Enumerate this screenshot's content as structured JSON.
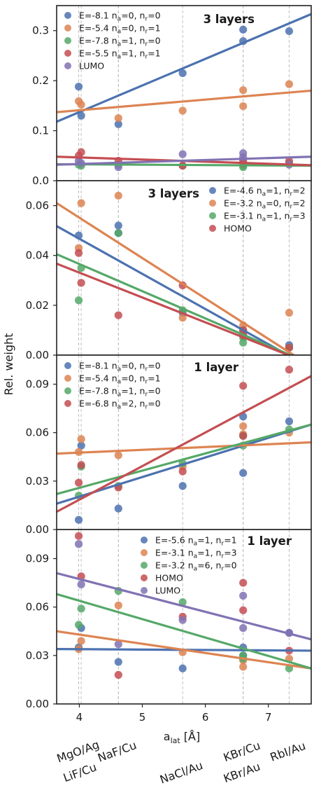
{
  "figure": {
    "ylabel": "Rel. weight",
    "xlabel": "a_lat [Å]",
    "x_ticks": [
      4,
      5,
      6,
      7
    ],
    "substrate_labels": [
      {
        "text": "MgO/Ag",
        "x": 4.0,
        "row": 0
      },
      {
        "text": "LiF/Cu",
        "x": 4.03,
        "row": 1
      },
      {
        "text": "NaF/Cu",
        "x": 4.62,
        "row": 0
      },
      {
        "text": "NaCl/Au",
        "x": 5.64,
        "row": 1
      },
      {
        "text": "KBr/Cu",
        "x": 6.6,
        "row": 0
      },
      {
        "text": "KBr/Au",
        "x": 6.6,
        "row": 1
      },
      {
        "text": "RbI/Au",
        "x": 7.33,
        "row": 0
      }
    ]
  },
  "colors": {
    "blue": "#4C72B0",
    "orange": "#DD8452",
    "green": "#55A868",
    "red": "#C44E52",
    "purple": "#8172B3"
  },
  "chart_data": [
    {
      "type": "scatter",
      "title": "3 layers",
      "xlim": [
        3.64,
        7.68
      ],
      "ylim": [
        0.0,
        0.35
      ],
      "yticks": [
        0.0,
        0.1,
        0.2,
        0.3
      ],
      "ytick_labels": [
        "0.0",
        "0.1",
        "0.2",
        "0.3"
      ],
      "vlines": [
        3.99,
        4.03,
        4.62,
        4.62,
        5.64,
        6.6,
        6.6,
        7.33
      ],
      "legend": {
        "position": "top-left"
      },
      "series": [
        {
          "name": "E=-8.1 n_a=0, n_r=0",
          "color": "blue",
          "points": [
            [
              3.99,
              0.188
            ],
            [
              4.03,
              0.13
            ],
            [
              4.62,
              0.113
            ],
            [
              5.64,
              0.215
            ],
            [
              6.6,
              0.302
            ],
            [
              6.6,
              0.279
            ],
            [
              7.33,
              0.299
            ]
          ],
          "fit": [
            0.118,
            0.333
          ]
        },
        {
          "name": "E=-5.4 n_a=0, n_r=1",
          "color": "orange",
          "points": [
            [
              3.99,
              0.159
            ],
            [
              4.03,
              0.152
            ],
            [
              4.62,
              0.125
            ],
            [
              5.64,
              0.14
            ],
            [
              6.6,
              0.181
            ],
            [
              6.6,
              0.149
            ],
            [
              7.33,
              0.193
            ]
          ],
          "fit": [
            0.137,
            0.18
          ]
        },
        {
          "name": "E=-7.8 n_a=1, n_r=0",
          "color": "green",
          "points": [
            [
              3.99,
              0.032
            ],
            [
              4.03,
              0.03
            ],
            [
              4.62,
              0.032
            ],
            [
              5.64,
              0.03
            ],
            [
              6.6,
              0.027
            ],
            [
              6.6,
              0.03
            ],
            [
              7.33,
              0.035
            ]
          ],
          "fit": [
            0.033,
            0.03
          ]
        },
        {
          "name": "E=-5.5 n_a=1, n_r=1",
          "color": "red",
          "points": [
            [
              3.99,
              0.05
            ],
            [
              4.03,
              0.057
            ],
            [
              4.62,
              0.04
            ],
            [
              5.64,
              0.03
            ],
            [
              6.6,
              0.04
            ],
            [
              6.6,
              0.035
            ],
            [
              7.33,
              0.039
            ]
          ],
          "fit": [
            0.048,
            0.031
          ]
        },
        {
          "name": "LUMO",
          "color": "purple",
          "points": [
            [
              3.99,
              0.04
            ],
            [
              4.03,
              0.035
            ],
            [
              4.62,
              0.027
            ],
            [
              5.64,
              0.053
            ],
            [
              6.6,
              0.055
            ],
            [
              6.6,
              0.047
            ],
            [
              7.33,
              0.032
            ]
          ],
          "fit": [
            0.032,
            0.048
          ]
        }
      ]
    },
    {
      "type": "scatter",
      "title": "3 layers",
      "xlim": [
        3.64,
        7.68
      ],
      "ylim": [
        0.0,
        0.07
      ],
      "yticks": [
        0.0,
        0.02,
        0.04,
        0.06
      ],
      "ytick_labels": [
        "0.00",
        "0.02",
        "0.04",
        "0.06"
      ],
      "vlines": [
        3.99,
        4.03,
        4.62,
        4.62,
        5.64,
        6.6,
        6.6,
        7.33
      ],
      "legend": {
        "position": "top-right"
      },
      "series": [
        {
          "name": "E=-4.6 n_a=1, n_r=2",
          "color": "blue",
          "points": [
            [
              3.99,
              0.048
            ],
            [
              4.62,
              0.052
            ],
            [
              4.62,
              0.049
            ],
            [
              5.64,
              0.017
            ],
            [
              6.6,
              0.01
            ],
            [
              6.6,
              0.008
            ],
            [
              7.33,
              0.004
            ]
          ],
          "fit": [
            0.0518,
            -0.0052
          ]
        },
        {
          "name": "E=-3.2 n_a=0, n_r=2",
          "color": "orange",
          "points": [
            [
              3.99,
              0.043
            ],
            [
              4.03,
              0.061
            ],
            [
              4.62,
              0.064
            ],
            [
              5.64,
              0.015
            ],
            [
              6.6,
              0.012
            ],
            [
              6.6,
              0.009
            ],
            [
              7.33,
              0.017
            ],
            [
              7.33,
              0.003
            ]
          ],
          "fit": [
            0.061,
            -0.0045
          ]
        },
        {
          "name": "E=-3.1 n_a=1, n_r=3",
          "color": "green",
          "points": [
            [
              3.99,
              0.022
            ],
            [
              4.03,
              0.035
            ],
            [
              4.62,
              0.049
            ],
            [
              5.64,
              0.018
            ],
            [
              6.6,
              0.007
            ],
            [
              6.6,
              0.005
            ],
            [
              7.33,
              0.003
            ]
          ],
          "fit": [
            0.0405,
            -0.0036
          ]
        },
        {
          "name": "HOMO",
          "color": "red",
          "points": [
            [
              3.99,
              0.041
            ],
            [
              4.03,
              0.029
            ],
            [
              4.62,
              0.016
            ],
            [
              5.64,
              0.028
            ],
            [
              6.6,
              0.008
            ],
            [
              6.6,
              0.01
            ],
            [
              7.33,
              0.003
            ]
          ],
          "fit": [
            0.0367,
            -0.0036
          ]
        }
      ]
    },
    {
      "type": "scatter",
      "title": "1 layer",
      "xlim": [
        3.64,
        7.68
      ],
      "ylim": [
        0.0,
        0.108
      ],
      "yticks": [
        0.0,
        0.03,
        0.06,
        0.09
      ],
      "ytick_labels": [
        "0.00",
        "0.03",
        "0.06",
        "0.09"
      ],
      "vlines": [
        3.99,
        4.03,
        4.62,
        4.62,
        5.64,
        6.6,
        6.6,
        7.33
      ],
      "legend": {
        "position": "top-left"
      },
      "series": [
        {
          "name": "E=-8.1 n_a=0, n_r=0",
          "color": "blue",
          "points": [
            [
              3.99,
              0.006
            ],
            [
              4.03,
              0.052
            ],
            [
              4.62,
              0.013
            ],
            [
              5.64,
              0.027
            ],
            [
              6.6,
              0.035
            ],
            [
              6.6,
              0.07
            ],
            [
              7.33,
              0.067
            ]
          ],
          "fit": [
            0.016,
            0.065
          ]
        },
        {
          "name": "E=-5.4 n_a=0, n_r=1",
          "color": "orange",
          "points": [
            [
              3.99,
              0.048
            ],
            [
              4.03,
              0.056
            ],
            [
              4.62,
              0.046
            ],
            [
              5.64,
              0.039
            ],
            [
              6.6,
              0.064
            ],
            [
              6.6,
              0.059
            ],
            [
              7.33,
              0.06
            ]
          ],
          "fit": [
            0.047,
            0.054
          ]
        },
        {
          "name": "E=-7.8 n_a=1, n_r=0",
          "color": "green",
          "points": [
            [
              3.99,
              0.021
            ],
            [
              4.03,
              0.039
            ],
            [
              4.62,
              0.027
            ],
            [
              5.64,
              0.041
            ],
            [
              6.6,
              0.052
            ],
            [
              6.6,
              0.058
            ],
            [
              7.33,
              0.062
            ]
          ],
          "fit": [
            0.022,
            0.065
          ]
        },
        {
          "name": "E=-6.8 n_a=2, n_r=0",
          "color": "red",
          "points": [
            [
              3.99,
              0.029
            ],
            [
              4.03,
              0.04
            ],
            [
              4.62,
              0.026
            ],
            [
              5.64,
              0.036
            ],
            [
              6.6,
              0.089
            ],
            [
              6.6,
              0.058
            ],
            [
              7.33,
              0.099
            ]
          ],
          "fit": [
            0.011,
            0.095
          ]
        }
      ]
    },
    {
      "type": "scatter",
      "title": "1 layer",
      "xlim": [
        3.64,
        7.68
      ],
      "ylim": [
        0.0,
        0.108
      ],
      "yticks": [
        0.0,
        0.03,
        0.06,
        0.09
      ],
      "ytick_labels": [
        "0.00",
        "0.03",
        "0.06",
        "0.09"
      ],
      "vlines": [
        3.99,
        4.03,
        4.62,
        4.62,
        5.64,
        6.6,
        6.6,
        7.33
      ],
      "legend": {
        "position": "top-right"
      },
      "series": [
        {
          "name": "E=-5.6 n_a=1, n_r=1",
          "color": "blue",
          "points": [
            [
              3.99,
              0.035
            ],
            [
              4.03,
              0.047
            ],
            [
              4.62,
              0.026
            ],
            [
              5.64,
              0.022
            ],
            [
              6.6,
              0.03
            ],
            [
              6.6,
              0.035
            ],
            [
              7.33,
              0.044
            ]
          ],
          "fit": [
            0.034,
            0.033
          ]
        },
        {
          "name": "E=-3.1 n_a=1, n_r=3",
          "color": "orange",
          "points": [
            [
              3.99,
              0.034
            ],
            [
              4.03,
              0.039
            ],
            [
              4.62,
              0.061
            ],
            [
              5.64,
              0.032
            ],
            [
              6.6,
              0.023
            ],
            [
              6.6,
              0.027
            ],
            [
              7.33,
              0.028
            ]
          ],
          "fit": [
            0.045,
            0.022
          ]
        },
        {
          "name": "E=-3.2 n_a=6, n_r=0",
          "color": "green",
          "points": [
            [
              3.99,
              0.049
            ],
            [
              4.03,
              0.059
            ],
            [
              4.62,
              0.07
            ],
            [
              5.64,
              0.063
            ],
            [
              6.6,
              0.03
            ],
            [
              6.6,
              0.028
            ],
            [
              7.33,
              0.022
            ]
          ],
          "fit": [
            0.068,
            0.022
          ]
        },
        {
          "name": "HOMO",
          "color": "red",
          "points": [
            [
              3.99,
              0.104
            ],
            [
              4.03,
              0.079
            ],
            [
              4.62,
              0.018
            ],
            [
              5.64,
              0.054
            ],
            [
              6.6,
              0.075
            ],
            [
              6.6,
              0.058
            ],
            [
              7.33,
              0.033
            ]
          ],
          "fit": null
        },
        {
          "name": "LUMO",
          "color": "purple",
          "points": [
            [
              3.99,
              0.099
            ],
            [
              4.03,
              0.074
            ],
            [
              4.62,
              0.037
            ],
            [
              5.64,
              0.052
            ],
            [
              6.6,
              0.067
            ],
            [
              6.6,
              0.047
            ],
            [
              7.33,
              0.044
            ]
          ],
          "fit": [
            0.081,
            0.04
          ]
        }
      ]
    }
  ]
}
